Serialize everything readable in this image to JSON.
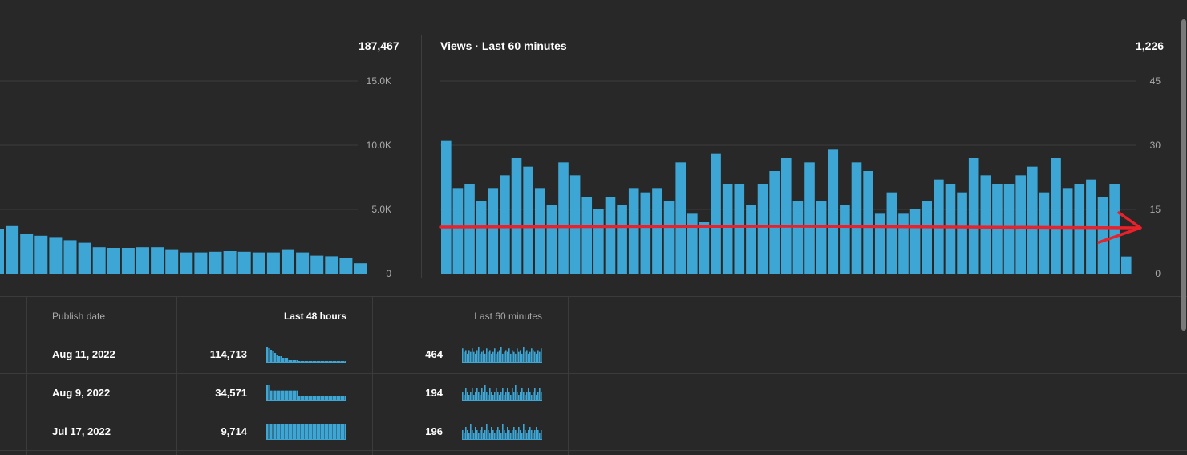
{
  "left_panel": {
    "total": "187,467",
    "chart_data": {
      "type": "bar",
      "title": "",
      "y_ticks": [
        "15.0K",
        "10.0K",
        "5.0K",
        "0"
      ],
      "ylim": [
        0,
        15000
      ],
      "grid": true,
      "values": [
        3500,
        3700,
        3100,
        2950,
        2850,
        2600,
        2400,
        2050,
        2000,
        2000,
        2050,
        2050,
        1900,
        1650,
        1650,
        1700,
        1750,
        1700,
        1650,
        1650,
        1900,
        1650,
        1400,
        1350,
        1250,
        800
      ]
    }
  },
  "right_panel": {
    "title": "Views · Last 60 minutes",
    "total": "1,226",
    "chart_data": {
      "type": "bar",
      "title": "Views · Last 60 minutes",
      "y_ticks": [
        "45",
        "30",
        "15",
        "0"
      ],
      "ylim": [
        0,
        45
      ],
      "grid": true,
      "values": [
        31,
        20,
        21,
        17,
        20,
        23,
        27,
        25,
        20,
        16,
        26,
        23,
        18,
        15,
        18,
        16,
        20,
        19,
        20,
        17,
        26,
        14,
        12,
        28,
        21,
        21,
        16,
        21,
        24,
        27,
        17,
        26,
        17,
        29,
        16,
        26,
        24,
        14,
        19,
        14,
        15,
        17,
        22,
        21,
        19,
        27,
        23,
        21,
        21,
        23,
        25,
        19,
        27,
        20,
        21,
        22,
        18,
        21,
        4
      ]
    }
  },
  "annotation": {
    "color": "#e8212a",
    "label": "red-arrow-annotation"
  },
  "accent_color": "#3ea6d4",
  "table": {
    "headers": {
      "publish_date": "Publish date",
      "last_48_hours": "Last 48 hours",
      "last_60_minutes": "Last 60 minutes"
    },
    "rows": [
      {
        "publish_date": "Aug 11, 2022",
        "views_48h": "114,713",
        "views_60m": "464",
        "spark_48h": [
          10,
          9,
          8,
          7,
          6,
          5,
          4,
          4,
          3,
          3,
          3,
          2,
          2,
          2,
          2,
          2,
          1,
          1,
          1,
          1,
          1,
          1,
          1,
          1,
          1,
          1,
          1,
          1,
          1,
          1,
          1,
          1,
          1,
          1,
          1,
          1,
          1,
          1,
          1,
          1
        ],
        "spark_60m": [
          8,
          6,
          7,
          5,
          7,
          6,
          8,
          6,
          5,
          7,
          9,
          5,
          6,
          7,
          5,
          8,
          6,
          7,
          5,
          6,
          8,
          5,
          6,
          7,
          9,
          5,
          6,
          7,
          6,
          8,
          5,
          7,
          6,
          5,
          8,
          6,
          7,
          5,
          9,
          6,
          7,
          5,
          6,
          8,
          7,
          6,
          5,
          7,
          6,
          8
        ]
      },
      {
        "publish_date": "Aug 9, 2022",
        "views_48h": "34,571",
        "views_60m": "194",
        "spark_48h": [
          3,
          3,
          2,
          2,
          2,
          2,
          2,
          2,
          2,
          2,
          2,
          2,
          2,
          2,
          2,
          2,
          1,
          1,
          1,
          1,
          1,
          1,
          1,
          1,
          1,
          1,
          1,
          1,
          1,
          1,
          1,
          1,
          1,
          1,
          1,
          1,
          1,
          1,
          1,
          1
        ],
        "spark_60m": [
          3,
          2,
          4,
          3,
          2,
          3,
          4,
          2,
          3,
          4,
          3,
          2,
          4,
          3,
          5,
          3,
          2,
          4,
          3,
          2,
          3,
          4,
          3,
          2,
          3,
          4,
          2,
          3,
          4,
          3,
          2,
          4,
          3,
          5,
          3,
          2,
          3,
          4,
          3,
          2,
          3,
          4,
          3,
          2,
          3,
          4,
          2,
          3,
          4,
          3
        ]
      },
      {
        "publish_date": "Jul 17, 2022",
        "views_48h": "9,714",
        "views_60m": "196",
        "spark_48h": [
          1,
          1,
          1,
          1,
          1,
          1,
          1,
          1,
          1,
          1,
          1,
          1,
          1,
          1,
          1,
          1,
          1,
          1,
          1,
          1,
          1,
          1,
          1,
          1,
          1,
          1,
          1,
          1,
          1,
          1,
          1,
          1,
          1,
          1,
          1,
          1,
          1,
          1,
          1,
          1
        ],
        "spark_60m": [
          3,
          2,
          4,
          3,
          2,
          5,
          3,
          2,
          4,
          3,
          2,
          3,
          4,
          2,
          3,
          5,
          3,
          2,
          4,
          3,
          2,
          3,
          4,
          3,
          2,
          5,
          3,
          2,
          4,
          3,
          2,
          3,
          4,
          3,
          2,
          4,
          3,
          2,
          5,
          3,
          2,
          3,
          4,
          3,
          2,
          3,
          4,
          3,
          2,
          3
        ]
      }
    ]
  }
}
